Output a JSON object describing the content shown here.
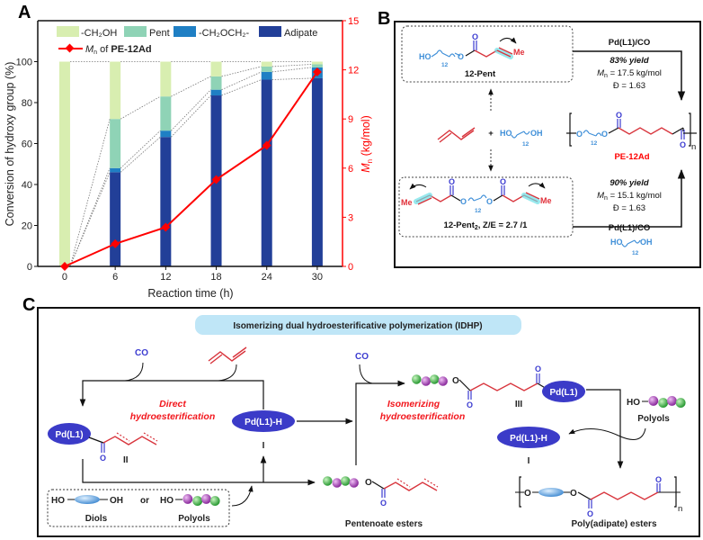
{
  "panel_labels": {
    "a": "A",
    "b": "B",
    "c": "C"
  },
  "chart_data": {
    "type": "bar+line",
    "title": "",
    "xlabel": "Reaction time (h)",
    "ylabel": "Conversion of hydroxy group (%)",
    "y2label": {
      "symbol": "M",
      "subscript": "n",
      "unit": "(kg/mol)"
    },
    "categories": [
      0,
      6,
      12,
      18,
      24,
      30
    ],
    "xlim": [
      -3.2,
      33
    ],
    "ylim": [
      0,
      120
    ],
    "y2lim": [
      0,
      15
    ],
    "yticks": [
      0,
      20,
      40,
      60,
      80,
      100
    ],
    "y2ticks": [
      0,
      3,
      6,
      9,
      12,
      15
    ],
    "stacked": true,
    "grid": false,
    "legend_placement": "top",
    "bar_series": [
      {
        "name": "Adipate",
        "color": "#223f98",
        "values": [
          0,
          46,
          63.2,
          83.5,
          91.2,
          91.9
        ]
      },
      {
        "name": "-CH₂OCH₂-",
        "color": "#1f7fc4",
        "values": [
          0,
          2,
          3.1,
          2.8,
          3.8,
          5.3
        ]
      },
      {
        "name": "Pent",
        "color": "#8fd3b6",
        "values": [
          0,
          24,
          16.7,
          6.5,
          2.6,
          1.5
        ]
      },
      {
        "name": "-CH₂OH",
        "color": "#d8eeb0",
        "values": [
          100,
          28,
          17,
          7.2,
          2.4,
          1.3
        ]
      }
    ],
    "line_series": {
      "legend": {
        "symbol": "M",
        "subscript": "n",
        "text": "of",
        "compound": "PE-12Ad"
      },
      "color": "#ff0000",
      "axis": "right",
      "values": [
        0,
        1.38,
        2.39,
        5.3,
        7.39,
        11.87
      ]
    },
    "legend_order": [
      "-CH₂OH",
      "Pent",
      "-CH₂OCH₂-",
      "Adipate"
    ]
  },
  "atoms": {
    "ho": "HO",
    "oh": "OH",
    "o": "O",
    "me": "Me",
    "n12": "12",
    "n": "n",
    "plus": "+"
  },
  "panel_b": {
    "pent_label": "12-Pent",
    "pent2_label": "12-Pent",
    "pent2_sub": "2",
    "pent2_ratio": ", Z/E = 2.7 /1",
    "top_catalyst": "Pd(L1)/CO",
    "top_yield": "83% yield",
    "top_mn_symbol": "M",
    "top_mn_sub": "n",
    "top_mn": " = 17.5 kg/mol",
    "top_d": "Đ = 1.63",
    "bottom_yield": "90% yield",
    "bottom_mn_symbol": "M",
    "bottom_mn_sub": "n",
    "bottom_mn": " = 15.1 kg/mol",
    "bottom_d": "Đ = 1.63",
    "bottom_catalyst": "Pd(L1)/CO",
    "product": "PE-12Ad"
  },
  "panel_c": {
    "title": "Isomerizing dual hydroesterificative polymerization (IDHP)",
    "co": "CO",
    "pd": "Pd(L1)",
    "pdh": "Pd(L1)-H",
    "direct_1": "Direct",
    "direct_2": "hydroesterification",
    "iso_1": "Isomerizing",
    "iso_2": "hydroesterification",
    "roman_1": "I",
    "roman_2": "II",
    "roman_3": "III",
    "diols": "Diols",
    "or": "or",
    "polyols": "Polyols",
    "pentenoate": "Pentenoate esters",
    "poly": "Poly(adipate) esters"
  },
  "colors": {
    "green_bead": "#36b040",
    "purple_bead": "#a23eb4",
    "pd_ellipse": "#3b3bc8",
    "chain_red": "#d8343c",
    "title_pill": "#bfe6f7"
  }
}
